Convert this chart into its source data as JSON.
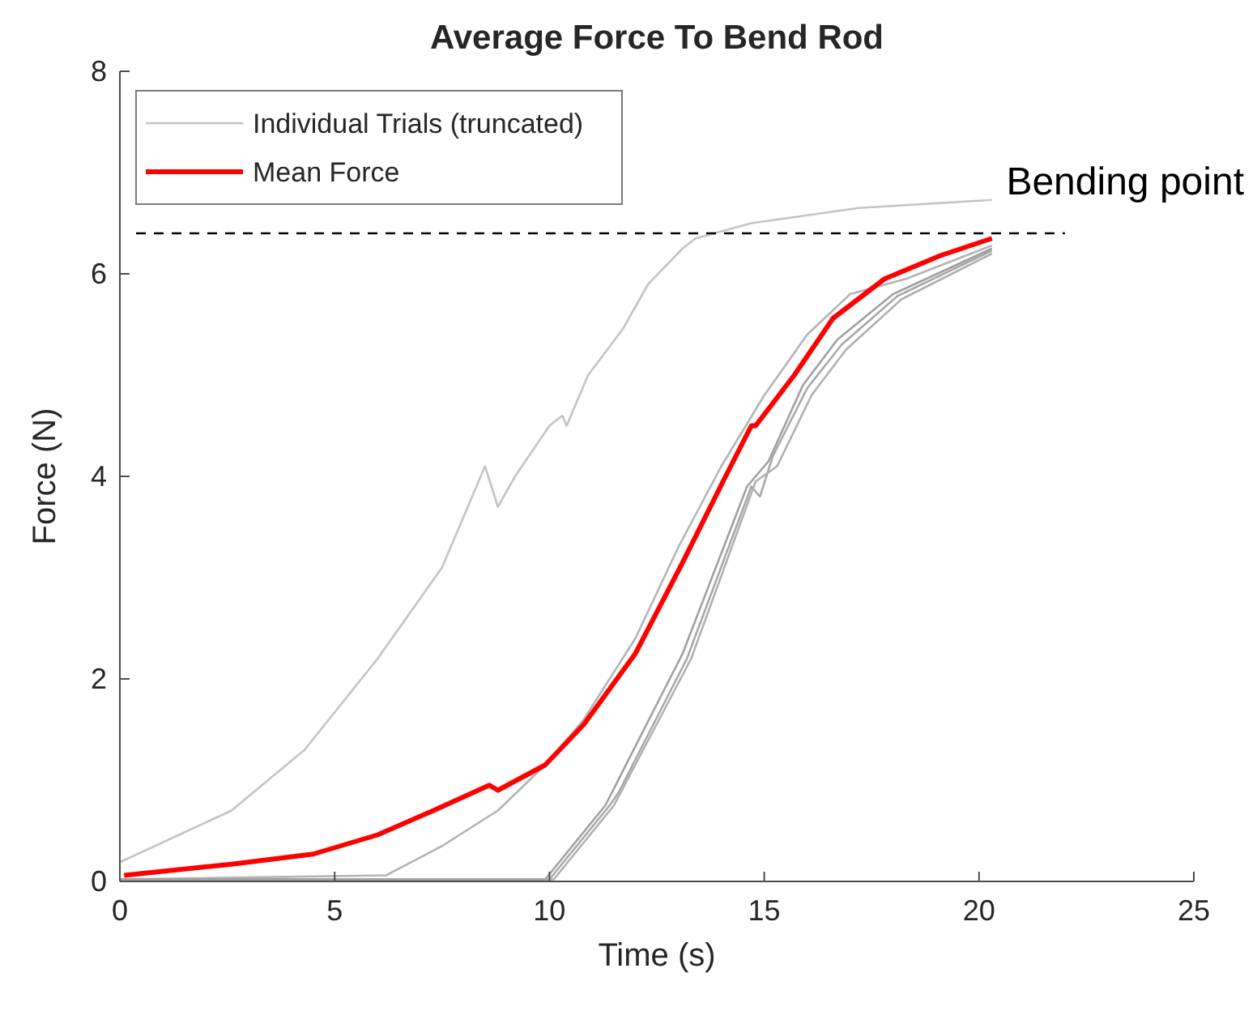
{
  "chart_data": {
    "type": "line",
    "title": "Average Force To Bend Rod",
    "xlabel": "Time (s)",
    "ylabel": "Force (N)",
    "xlim": [
      0,
      25
    ],
    "xticks": [
      0,
      5,
      10,
      15,
      20,
      25
    ],
    "ylim": [
      0,
      8
    ],
    "yticks": [
      0,
      2,
      4,
      6,
      8
    ],
    "grid": false,
    "legend": "top left",
    "marker": "none",
    "line_style": "solid",
    "series": [
      {
        "name": "Individual Trials (truncated)",
        "color": "#c4c4c4",
        "x": [
          0,
          2.6,
          4.3,
          6.0,
          7.5,
          8.5,
          8.8,
          9.2,
          10.0,
          10.3,
          10.4,
          10.9,
          11.7,
          12.3,
          13.1,
          13.4,
          14.7,
          17.2,
          20.3
        ],
        "values": [
          0.19,
          0.7,
          1.3,
          2.2,
          3.1,
          4.1,
          3.7,
          4.0,
          4.5,
          4.6,
          4.5,
          5.0,
          5.45,
          5.9,
          6.25,
          6.35,
          6.5,
          6.65,
          6.73
        ]
      },
      {
        "color": "#b4b4b4",
        "x": [
          0,
          6.2,
          7.5,
          8.8,
          9.9,
          10.8,
          12,
          13,
          14,
          15,
          16,
          17,
          18.3,
          20.3
        ],
        "values": [
          0.02,
          0.06,
          0.35,
          0.7,
          1.15,
          1.6,
          2.4,
          3.3,
          4.1,
          4.8,
          5.4,
          5.8,
          5.95,
          6.28
        ]
      },
      {
        "color": "#a8a8a8",
        "x": [
          0,
          10,
          11.4,
          11.6,
          13.2,
          14.7,
          14.9,
          15.2,
          16,
          16.8,
          18.1,
          20.3
        ],
        "values": [
          0.02,
          0.02,
          0.75,
          0.87,
          2.2,
          3.9,
          3.8,
          4.2,
          4.87,
          5.3,
          5.78,
          6.23
        ]
      },
      {
        "color": "#b0b0b0",
        "x": [
          0,
          10.1,
          11.5,
          13.3,
          14.8,
          15.3,
          16.1,
          16.9,
          18.2,
          20.3
        ],
        "values": [
          0.02,
          0.02,
          0.75,
          2.2,
          3.95,
          4.1,
          4.8,
          5.25,
          5.75,
          6.2
        ]
      },
      {
        "color": "#a0a0a0",
        "x": [
          0,
          9.9,
          11.3,
          13.1,
          14.6,
          15.1,
          15.9,
          16.7,
          18.0,
          20.3
        ],
        "values": [
          0.02,
          0.02,
          0.75,
          2.25,
          3.9,
          4.15,
          4.9,
          5.35,
          5.8,
          6.25
        ]
      },
      {
        "name": "Mean Force",
        "color": "#ff0000",
        "x": [
          0.1,
          2.6,
          4.5,
          6.0,
          7.3,
          8.6,
          8.8,
          9.9,
          10.8,
          12.0,
          13.1,
          14.1,
          14.7,
          14.8,
          15.7,
          16.6,
          17.8,
          19.1,
          20.3
        ],
        "values": [
          0.06,
          0.17,
          0.27,
          0.46,
          0.7,
          0.95,
          0.9,
          1.15,
          1.55,
          2.25,
          3.15,
          4.0,
          4.5,
          4.5,
          5.0,
          5.56,
          5.95,
          6.18,
          6.35
        ]
      }
    ],
    "ref_lines": [
      {
        "axis": "y",
        "value": 6.4,
        "label": "Bending point",
        "color": "#000000",
        "line_style": "dashed"
      }
    ]
  }
}
